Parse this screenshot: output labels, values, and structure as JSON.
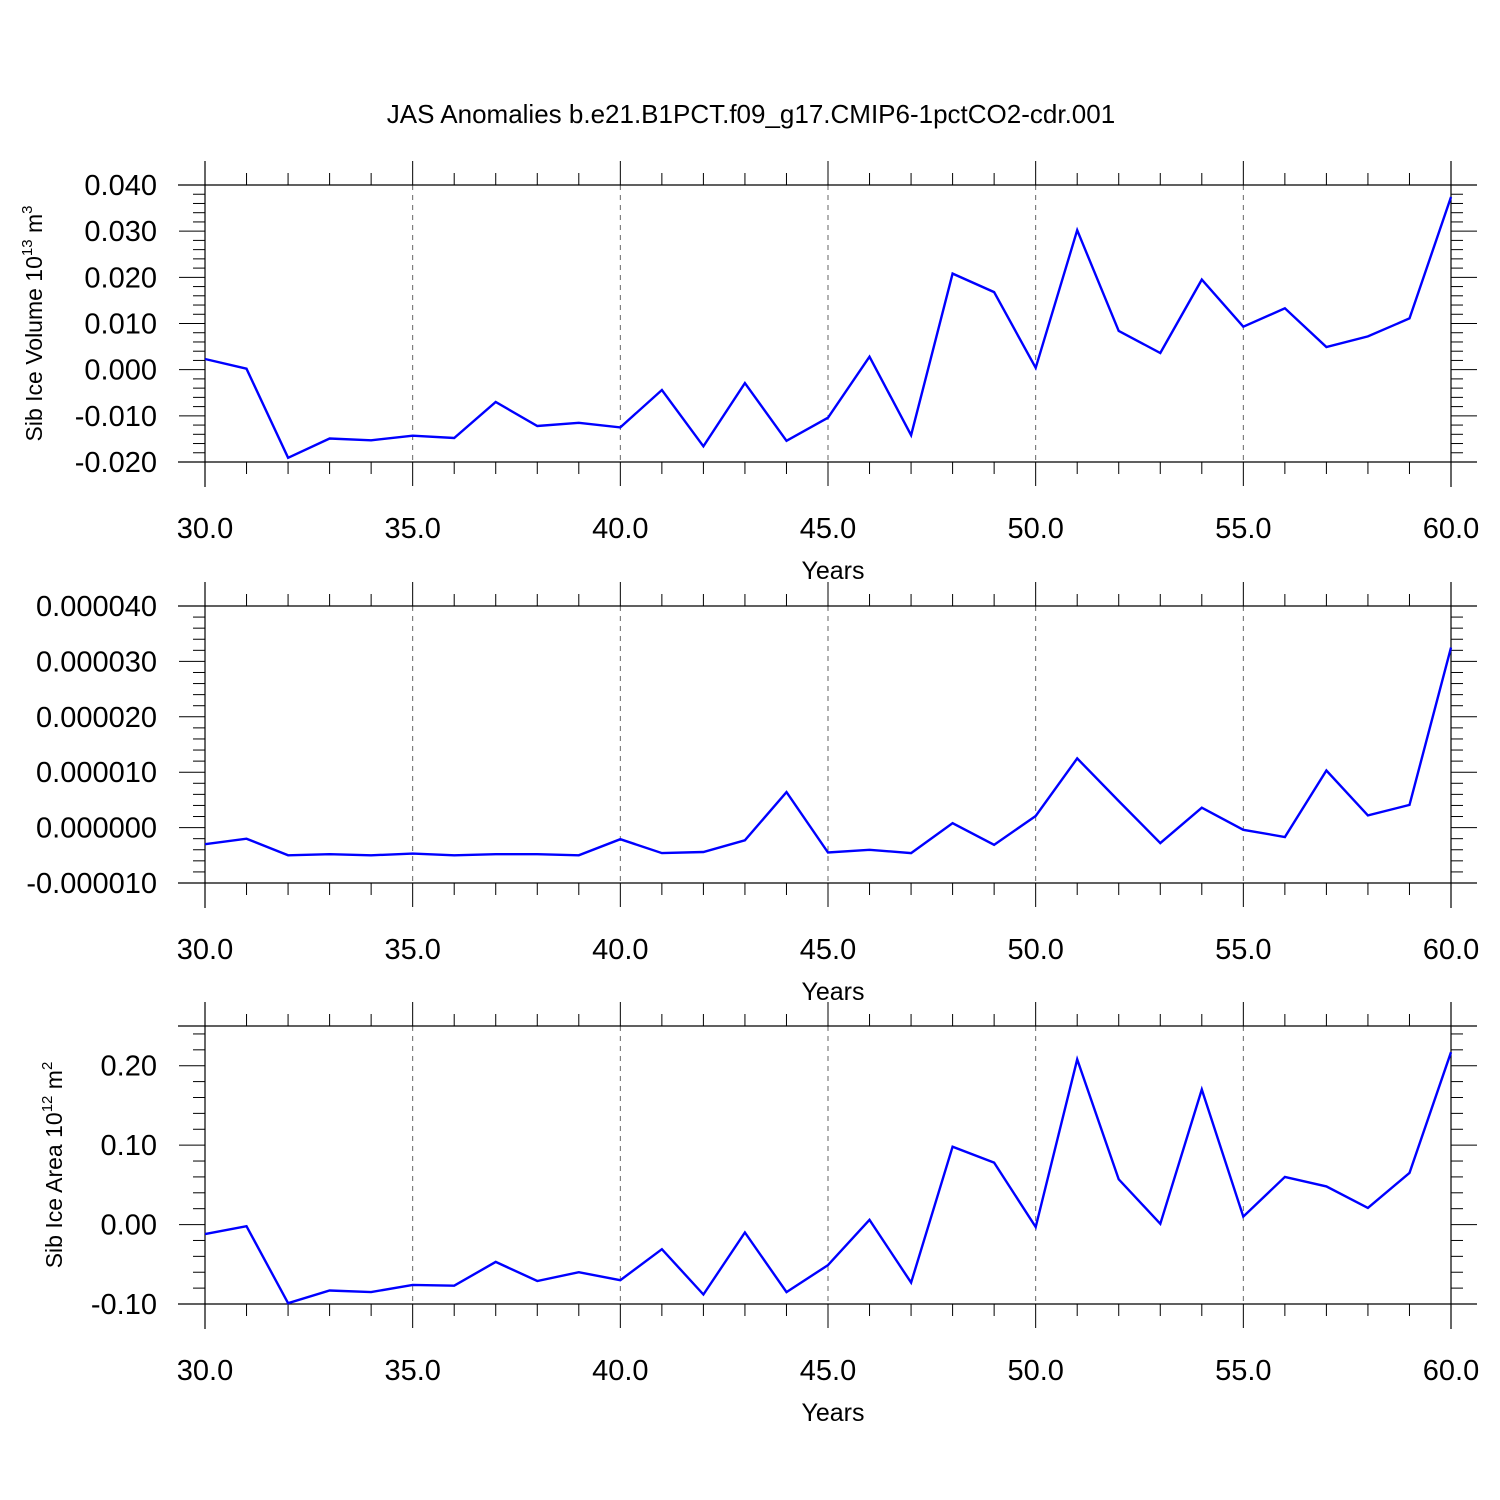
{
  "title": "JAS Anomalies b.e21.B1PCT.f09_g17.CMIP6-1pctCO2-cdr.001",
  "line_color": "#0000ff",
  "chart_data": [
    {
      "type": "line",
      "xlabel": "Years",
      "ylabel": {
        "main": "Sib Ice Volume 10",
        "sup": "13",
        "unit_main": "m",
        "unit_sup": "3"
      },
      "xlim": [
        30,
        60
      ],
      "ylim": [
        -0.02,
        0.04
      ],
      "x_ticks": [
        30,
        35,
        40,
        45,
        50,
        55,
        60
      ],
      "x_tick_labels": [
        "30.0",
        "35.0",
        "40.0",
        "45.0",
        "50.0",
        "55.0",
        "60.0"
      ],
      "y_ticks": [
        -0.02,
        -0.01,
        0,
        0.01,
        0.02,
        0.03,
        0.04
      ],
      "y_tick_labels": [
        "-0.020",
        "-0.010",
        "0.000",
        "0.010",
        "0.020",
        "0.030",
        "0.040"
      ],
      "vertical_grid": [
        35,
        40,
        45,
        50,
        55
      ],
      "x": [
        30,
        31,
        32,
        33,
        34,
        35,
        36,
        37,
        38,
        39,
        40,
        41,
        42,
        43,
        44,
        45,
        46,
        47,
        48,
        49,
        50,
        51,
        52,
        53,
        54,
        55,
        56,
        57,
        58,
        59,
        60
      ],
      "values": [
        0.0023,
        0.0002,
        -0.0191,
        -0.0149,
        -0.0153,
        -0.0143,
        -0.0148,
        -0.007,
        -0.0122,
        -0.0115,
        -0.0125,
        -0.0044,
        -0.0166,
        -0.0029,
        -0.0154,
        -0.0104,
        0.0028,
        -0.0142,
        0.0208,
        0.0168,
        0.0004,
        0.0302,
        0.0084,
        0.0036,
        0.0195,
        0.0093,
        0.0133,
        0.0049,
        0.0072,
        0.0111,
        0.0374
      ]
    },
    {
      "type": "line",
      "xlabel": "Years",
      "ylabel": null,
      "xlim": [
        30,
        60
      ],
      "ylim": [
        -1e-05,
        4e-05
      ],
      "x_ticks": [
        30,
        35,
        40,
        45,
        50,
        55,
        60
      ],
      "x_tick_labels": [
        "30.0",
        "35.0",
        "40.0",
        "45.0",
        "50.0",
        "55.0",
        "60.0"
      ],
      "y_ticks": [
        -1e-05,
        0,
        1e-05,
        2e-05,
        3e-05,
        4e-05
      ],
      "y_tick_labels": [
        "-0.000010",
        "0.000000",
        "0.000010",
        "0.000020",
        "0.000030",
        "0.000040"
      ],
      "vertical_grid": [
        35,
        40,
        45,
        50,
        55
      ],
      "x": [
        30,
        31,
        32,
        33,
        34,
        35,
        36,
        37,
        38,
        39,
        40,
        41,
        42,
        43,
        44,
        45,
        46,
        47,
        48,
        49,
        50,
        51,
        52,
        53,
        54,
        55,
        56,
        57,
        58,
        59,
        60
      ],
      "values": [
        -3e-06,
        -2e-06,
        -5e-06,
        -4.8e-06,
        -5e-06,
        -4.7e-06,
        -5e-06,
        -4.8e-06,
        -4.8e-06,
        -5e-06,
        -2.1e-06,
        -4.6e-06,
        -4.4e-06,
        -2.3e-06,
        6.4e-06,
        -4.5e-06,
        -4e-06,
        -4.6e-06,
        8e-07,
        -3.1e-06,
        2.1e-06,
        1.25e-05,
        4.8e-06,
        -2.8e-06,
        3.6e-06,
        -4e-07,
        -1.7e-06,
        1.03e-05,
        2.2e-06,
        4.1e-06,
        3.25e-05
      ]
    },
    {
      "type": "line",
      "xlabel": "Years",
      "ylabel": {
        "main": "Sib Ice Area 10",
        "sup": "12",
        "unit_main": "m",
        "unit_sup": "2"
      },
      "xlim": [
        30,
        60
      ],
      "ylim": [
        -0.1,
        0.25
      ],
      "x_ticks": [
        30,
        35,
        40,
        45,
        50,
        55,
        60
      ],
      "x_tick_labels": [
        "30.0",
        "35.0",
        "40.0",
        "45.0",
        "50.0",
        "55.0",
        "60.0"
      ],
      "y_ticks": [
        -0.1,
        0,
        0.1,
        0.2
      ],
      "y_tick_labels": [
        "-0.10",
        "0.00",
        "0.10",
        "0.20"
      ],
      "vertical_grid": [
        35,
        40,
        45,
        50,
        55
      ],
      "x": [
        30,
        31,
        32,
        33,
        34,
        35,
        36,
        37,
        38,
        39,
        40,
        41,
        42,
        43,
        44,
        45,
        46,
        47,
        48,
        49,
        50,
        51,
        52,
        53,
        54,
        55,
        56,
        57,
        58,
        59,
        60
      ],
      "values": [
        -0.012,
        -0.002,
        -0.099,
        -0.083,
        -0.085,
        -0.076,
        -0.077,
        -0.047,
        -0.071,
        -0.06,
        -0.07,
        -0.031,
        -0.088,
        -0.01,
        -0.085,
        -0.051,
        0.006,
        -0.073,
        0.098,
        0.078,
        -0.003,
        0.208,
        0.057,
        0.001,
        0.17,
        0.01,
        0.06,
        0.048,
        0.021,
        0.065,
        0.217
      ]
    }
  ]
}
